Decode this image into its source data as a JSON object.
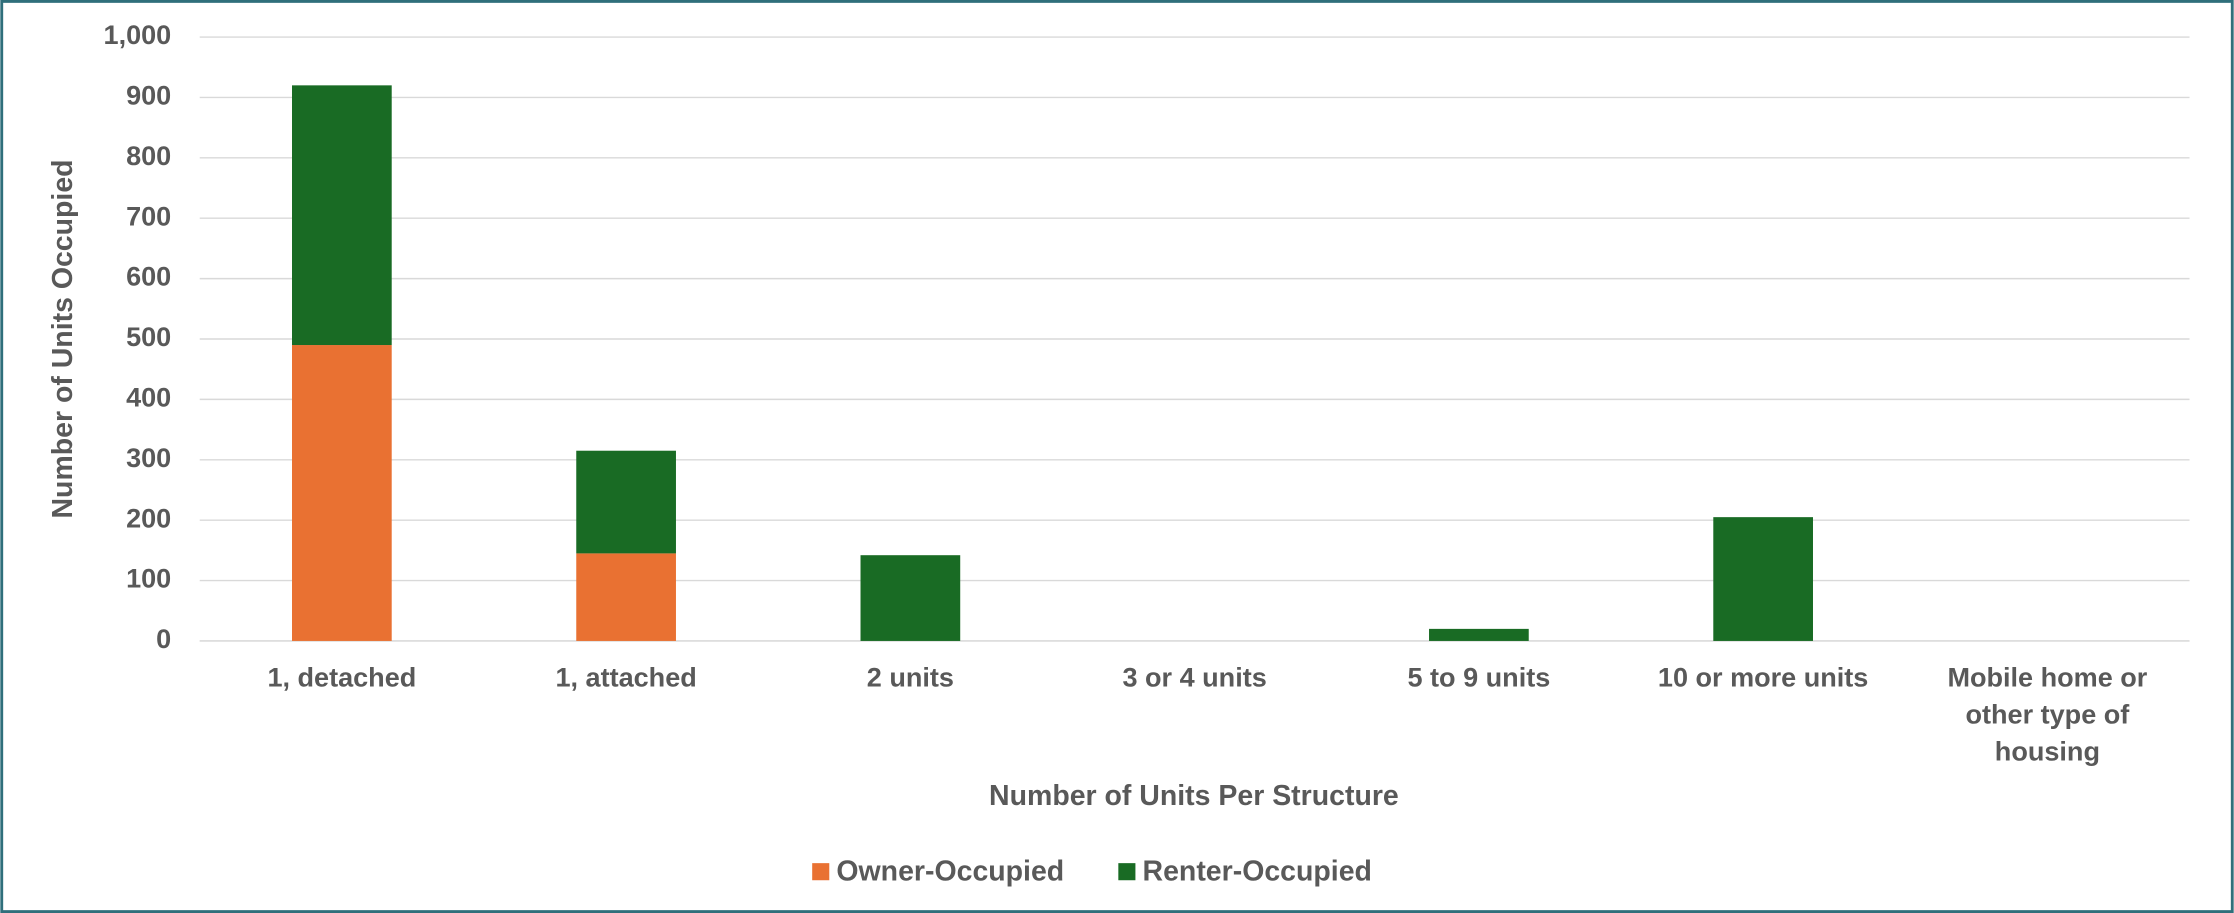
{
  "chart_data": {
    "type": "stacked_bar",
    "categories": [
      "1, detached",
      "1, attached",
      "2 units",
      "3 or 4 units",
      "5 to 9 units",
      "10 or more units",
      "Mobile home or other type of housing"
    ],
    "series": [
      {
        "name": "Owner-Occupied",
        "color": "#e97132",
        "values": [
          490,
          145,
          0,
          0,
          0,
          0,
          0
        ]
      },
      {
        "name": "Renter-Occupied",
        "color": "#196b24",
        "values": [
          430,
          170,
          142,
          0,
          20,
          205,
          0
        ]
      }
    ],
    "x_label": "Number of Units Per Structure",
    "y_label": "Number of Units Occupied",
    "ylim": [
      0,
      1000
    ],
    "yticks": [
      0,
      100,
      200,
      300,
      400,
      500,
      600,
      700,
      800,
      900,
      {
        "value": 1000,
        "label": "1,000"
      }
    ],
    "grid": true,
    "legend": "bottom"
  }
}
